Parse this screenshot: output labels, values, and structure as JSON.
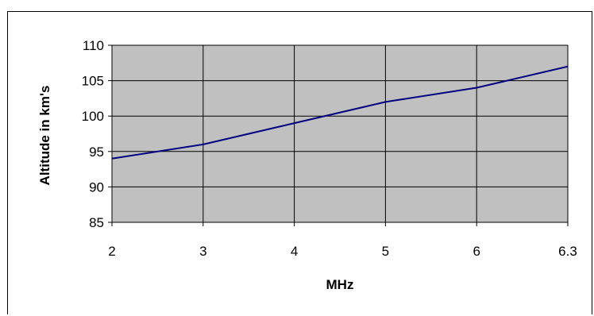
{
  "chart_data": {
    "type": "line",
    "title": "",
    "xlabel": "MHz",
    "ylabel": "Altitude in km's",
    "categories": [
      "2",
      "3",
      "4",
      "5",
      "6",
      "6.3"
    ],
    "series": [
      {
        "values": [
          94,
          96,
          99,
          102,
          104,
          107
        ]
      }
    ],
    "ylim": [
      85,
      110
    ],
    "yticks": [
      85,
      90,
      95,
      100,
      105,
      110
    ],
    "grid": true,
    "legend": "none",
    "colors": {
      "plot_background": "#c0c0c0",
      "line": "#000080",
      "grid": "#000000"
    }
  }
}
